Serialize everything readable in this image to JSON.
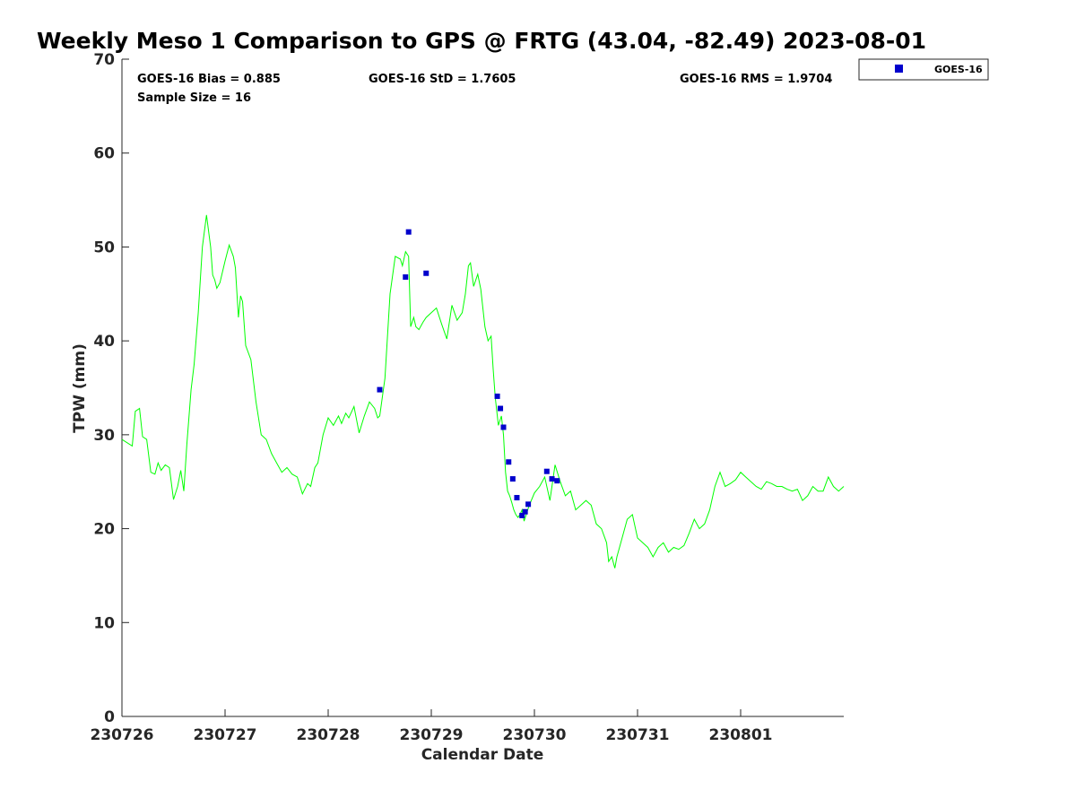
{
  "chart_data": {
    "type": "scatter",
    "title": "Weekly Meso 1 Comparison to GPS @ FRTG (43.04, -82.49) 2023-08-01",
    "xlabel": "Calendar Date",
    "ylabel": "TPW (mm)",
    "xlim": [
      0,
      7
    ],
    "ylim": [
      0,
      70
    ],
    "x_ticks": [
      {
        "value": 0,
        "label": "230726"
      },
      {
        "value": 1,
        "label": "230727"
      },
      {
        "value": 2,
        "label": "230728"
      },
      {
        "value": 3,
        "label": "230729"
      },
      {
        "value": 4,
        "label": "230730"
      },
      {
        "value": 5,
        "label": "230731"
      },
      {
        "value": 6,
        "label": "230801"
      }
    ],
    "y_ticks": [
      0,
      10,
      20,
      30,
      40,
      50,
      60,
      70
    ],
    "grid": false,
    "legend_position": "outside-top-right",
    "stats": {
      "bias": "GOES-16 Bias = 0.885",
      "sample_size": "Sample Size = 16",
      "std": "GOES-16 StD = 1.7605",
      "rms": "GOES-16 RMS = 1.9704"
    },
    "series": [
      {
        "kind": "line",
        "color": "#00ff00",
        "x": [
          0.0,
          0.1,
          0.13,
          0.17,
          0.2,
          0.24,
          0.28,
          0.32,
          0.35,
          0.38,
          0.42,
          0.46,
          0.5,
          0.54,
          0.57,
          0.6,
          0.63,
          0.67,
          0.7,
          0.74,
          0.78,
          0.82,
          0.86,
          0.88,
          0.9,
          0.92,
          0.95,
          1.0,
          1.04,
          1.08,
          1.1,
          1.13,
          1.15,
          1.17,
          1.2,
          1.25,
          1.3,
          1.35,
          1.4,
          1.45,
          1.5,
          1.55,
          1.6,
          1.65,
          1.7,
          1.75,
          1.8,
          1.83,
          1.87,
          1.9,
          1.95,
          2.0,
          2.05,
          2.1,
          2.13,
          2.17,
          2.2,
          2.25,
          2.3,
          2.35,
          2.4,
          2.45,
          2.48,
          2.5,
          2.55,
          2.6,
          2.65,
          2.7,
          2.72,
          2.75,
          2.78,
          2.8,
          2.83,
          2.85,
          2.88,
          2.92,
          2.95,
          3.0,
          3.05,
          3.1,
          3.15,
          3.2,
          3.25,
          3.3,
          3.33,
          3.36,
          3.38,
          3.41,
          3.45,
          3.48,
          3.52,
          3.55,
          3.58,
          3.6,
          3.62,
          3.65,
          3.68,
          3.7,
          3.72,
          3.74,
          3.76,
          3.78,
          3.8,
          3.82,
          3.84,
          3.86,
          3.88,
          3.9,
          3.92,
          3.95,
          4.0,
          4.05,
          4.1,
          4.15,
          4.2,
          4.25,
          4.3,
          4.35,
          4.4,
          4.45,
          4.5,
          4.55,
          4.6,
          4.65,
          4.7,
          4.72,
          4.75,
          4.78,
          4.8,
          4.85,
          4.9,
          4.95,
          5.0,
          5.05,
          5.1,
          5.15,
          5.2,
          5.25,
          5.3,
          5.35,
          5.4,
          5.45,
          5.5,
          5.55,
          5.6,
          5.65,
          5.7,
          5.75,
          5.8,
          5.85,
          5.9,
          5.95,
          6.0,
          6.05,
          6.1,
          6.15,
          6.2,
          6.25,
          6.3,
          6.35,
          6.4,
          6.45,
          6.5,
          6.55,
          6.6,
          6.65,
          6.7,
          6.75,
          6.8,
          6.85,
          6.9,
          6.95,
          7.0
        ],
        "y": [
          29.5,
          28.8,
          32.5,
          32.8,
          29.8,
          29.5,
          26.0,
          25.8,
          27.0,
          26.2,
          26.8,
          26.5,
          23.1,
          24.5,
          26.2,
          24.0,
          29.0,
          34.8,
          37.5,
          43.0,
          50.0,
          53.4,
          50.0,
          47.0,
          46.5,
          45.6,
          46.2,
          48.5,
          50.2,
          49.0,
          47.8,
          42.5,
          44.8,
          44.2,
          39.5,
          38.0,
          33.5,
          30.0,
          29.5,
          28.0,
          27.0,
          26.0,
          26.5,
          25.8,
          25.5,
          23.7,
          24.8,
          24.5,
          26.5,
          27.0,
          30.0,
          31.8,
          31.0,
          32.0,
          31.2,
          32.3,
          31.8,
          33.0,
          30.2,
          32.0,
          33.5,
          32.8,
          31.8,
          32.0,
          36.0,
          45.0,
          49.0,
          48.7,
          48.0,
          49.5,
          49.0,
          41.5,
          42.5,
          41.5,
          41.2,
          42.0,
          42.5,
          43.0,
          43.5,
          41.8,
          40.2,
          43.8,
          42.2,
          43.0,
          45.0,
          48.0,
          48.3,
          45.8,
          47.1,
          45.5,
          41.5,
          40.0,
          40.5,
          37.0,
          34.0,
          31.0,
          32.0,
          30.0,
          26.0,
          24.0,
          23.5,
          22.8,
          22.0,
          21.5,
          21.2,
          21.5,
          22.0,
          20.8,
          21.5,
          22.5,
          23.8,
          24.5,
          25.5,
          23.0,
          26.8,
          25.0,
          23.5,
          24.0,
          22.0,
          22.5,
          23.0,
          22.5,
          20.5,
          20.0,
          18.5,
          16.5,
          17.0,
          15.8,
          17.0,
          19.0,
          21.0,
          21.5,
          19.0,
          18.5,
          18.0,
          17.0,
          18.0,
          18.5,
          17.5,
          18.0,
          17.8,
          18.2,
          19.5,
          21.0,
          20.0,
          20.5,
          22.0,
          24.5,
          26.0,
          24.5,
          24.8,
          25.2,
          26.0,
          25.5,
          25.0,
          24.5,
          24.2,
          25.0,
          24.8,
          24.5,
          24.5,
          24.2,
          24.0,
          24.2,
          23.0,
          23.5,
          24.5,
          24.0,
          24.0,
          25.5,
          24.5,
          24.0,
          24.5
        ]
      },
      {
        "kind": "scatter",
        "name": "GOES-16",
        "color": "#0000cc",
        "x": [
          2.5,
          2.75,
          2.78,
          2.95,
          3.64,
          3.67,
          3.7,
          3.75,
          3.79,
          3.83,
          3.88,
          3.91,
          3.94,
          4.12,
          4.17,
          4.22
        ],
        "y": [
          34.8,
          46.8,
          51.6,
          47.2,
          34.1,
          32.8,
          30.8,
          27.1,
          25.3,
          23.3,
          21.4,
          21.8,
          22.6,
          26.1,
          25.3,
          25.1
        ]
      }
    ]
  }
}
